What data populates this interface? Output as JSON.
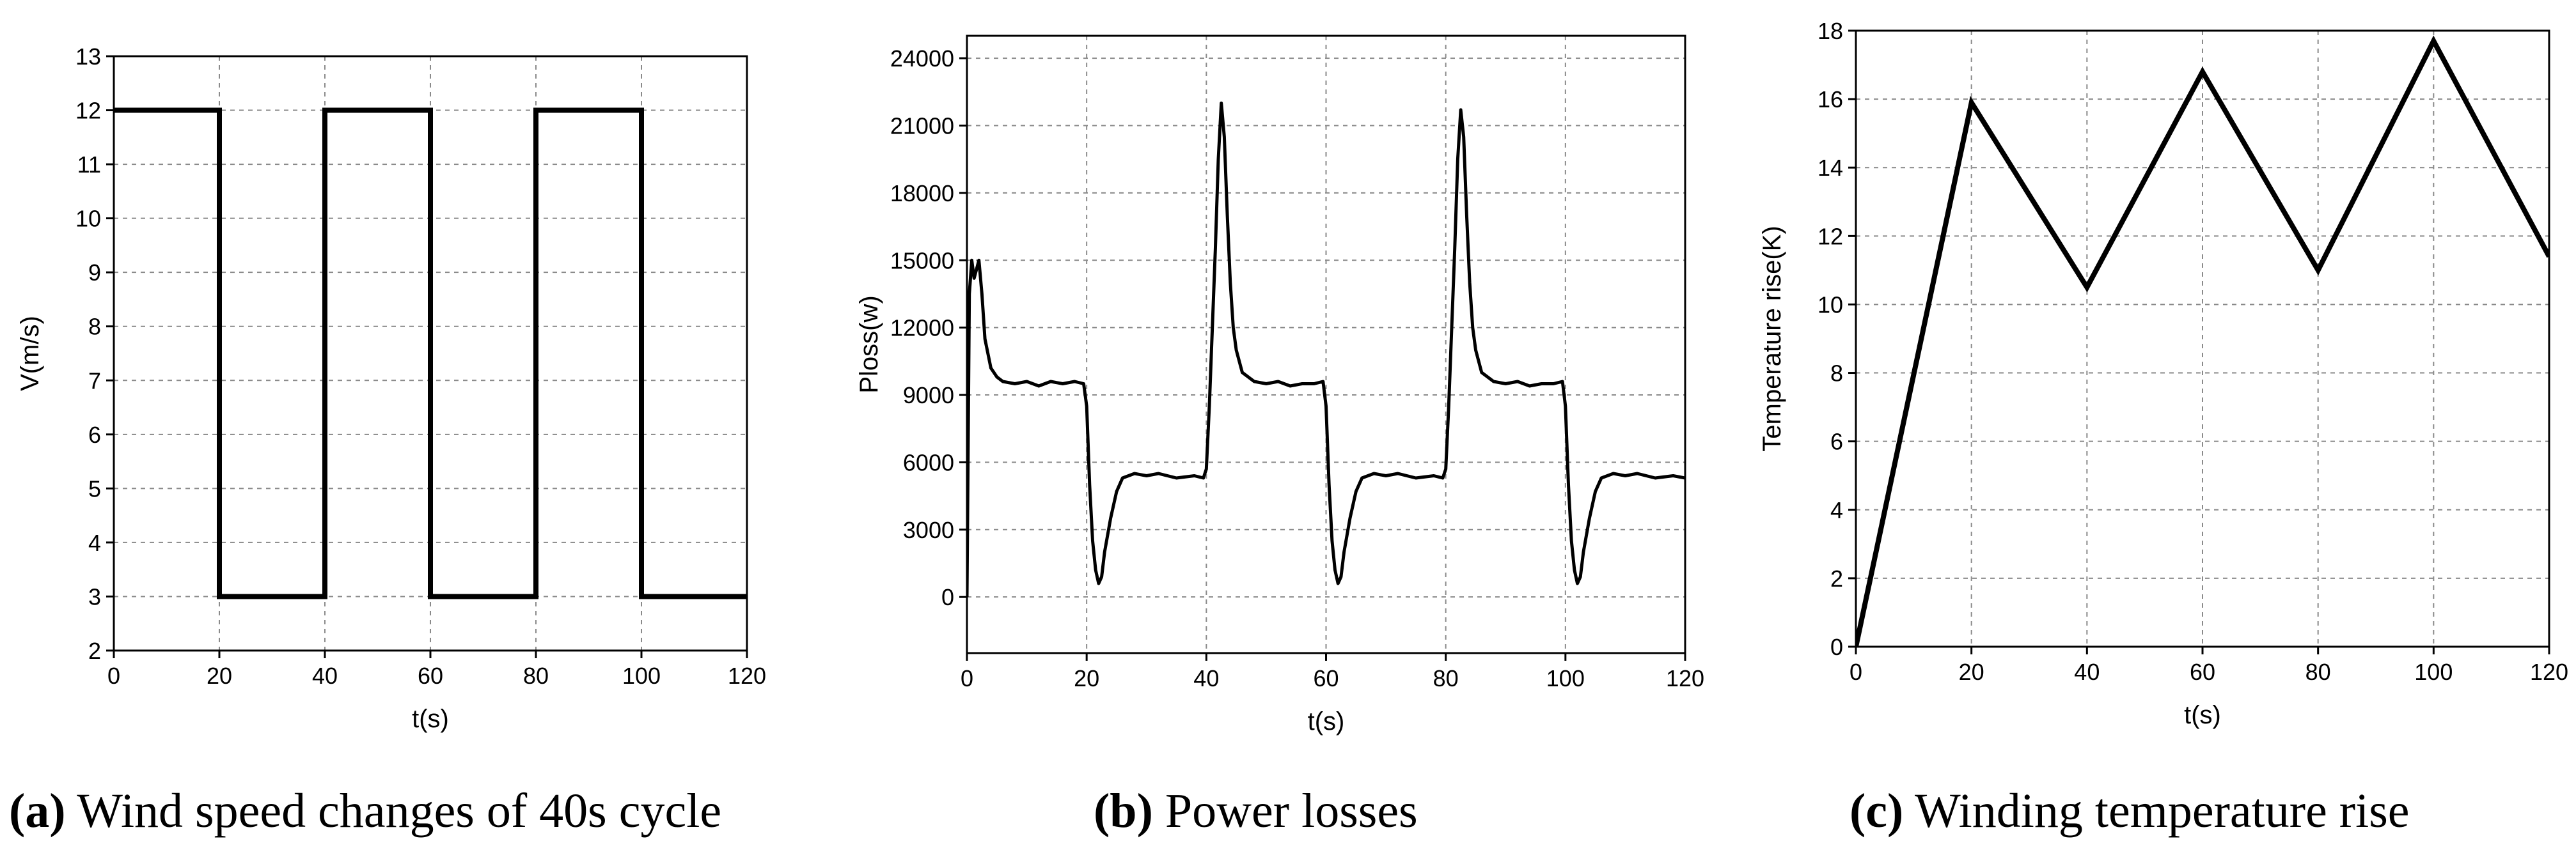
{
  "chart_data": [
    {
      "type": "line",
      "caption_label": "(a)",
      "caption_text": " Wind speed changes of 40s cycle",
      "xlabel": "t(s)",
      "ylabel": "V(m/s)",
      "xlim": [
        0,
        120
      ],
      "ylim": [
        2,
        13
      ],
      "xticks": [
        0,
        20,
        40,
        60,
        80,
        100,
        120
      ],
      "yticks": [
        2,
        3,
        4,
        5,
        6,
        7,
        8,
        9,
        10,
        11,
        12,
        13
      ],
      "grid": true,
      "series": [
        {
          "x": [
            0,
            20,
            20,
            40,
            40,
            60,
            60,
            80,
            80,
            100,
            100,
            120
          ],
          "y": [
            12,
            12,
            3,
            3,
            12,
            12,
            3,
            3,
            12,
            12,
            3,
            3
          ]
        }
      ]
    },
    {
      "type": "line",
      "caption_label": "(b)",
      "caption_text": " Power losses",
      "xlabel": "t(s)",
      "ylabel": "Ploss(w)",
      "xlim": [
        0,
        120
      ],
      "ylim": [
        -2500,
        25000
      ],
      "xticks": [
        0,
        20,
        40,
        60,
        80,
        100,
        120
      ],
      "yticks": [
        0,
        3000,
        6000,
        9000,
        12000,
        15000,
        18000,
        21000,
        24000
      ],
      "grid": true,
      "series": [
        {
          "x": [
            0,
            0.4,
            0.8,
            1.2,
            2,
            2.5,
            3,
            4,
            5,
            6,
            8,
            10,
            12,
            14,
            16,
            18,
            19.5,
            20,
            20.5,
            21,
            21.5,
            22,
            22.5,
            23,
            24,
            25,
            26,
            28,
            30,
            32,
            35,
            38,
            39.5,
            40,
            40.5,
            41,
            41.5,
            42,
            42.5,
            43,
            43.5,
            44,
            44.5,
            45,
            46,
            48,
            50,
            52,
            54,
            56,
            58,
            59.5,
            60,
            60.5,
            61,
            61.5,
            62,
            62.5,
            63,
            64,
            65,
            66,
            68,
            70,
            72,
            75,
            78,
            79.5,
            80,
            80.5,
            81,
            81.5,
            82,
            82.5,
            83,
            83.5,
            84,
            84.5,
            85,
            86,
            88,
            90,
            92,
            94,
            96,
            98,
            99.5,
            100,
            100.5,
            101,
            101.5,
            102,
            102.5,
            103,
            104,
            105,
            106,
            108,
            110,
            112,
            115,
            118,
            120
          ],
          "y": [
            0,
            13500,
            15000,
            14200,
            15000,
            13500,
            11500,
            10200,
            9800,
            9600,
            9500,
            9600,
            9400,
            9600,
            9500,
            9600,
            9500,
            8500,
            5000,
            2500,
            1200,
            600,
            900,
            2000,
            3500,
            4700,
            5300,
            5500,
            5400,
            5500,
            5300,
            5400,
            5300,
            5700,
            8500,
            12000,
            15500,
            19500,
            22000,
            20500,
            17000,
            14000,
            12000,
            11000,
            10000,
            9600,
            9500,
            9600,
            9400,
            9500,
            9500,
            9600,
            8500,
            5000,
            2500,
            1200,
            600,
            900,
            2000,
            3500,
            4700,
            5300,
            5500,
            5400,
            5500,
            5300,
            5400,
            5300,
            5700,
            8500,
            12000,
            15500,
            19500,
            21700,
            20500,
            17000,
            14000,
            12000,
            11000,
            10000,
            9600,
            9500,
            9600,
            9400,
            9500,
            9500,
            9600,
            8500,
            5000,
            2500,
            1200,
            600,
            900,
            2000,
            3500,
            4700,
            5300,
            5500,
            5400,
            5500,
            5300,
            5400,
            5300
          ]
        }
      ]
    },
    {
      "type": "line",
      "caption_label": "(c)",
      "caption_text": " Winding temperature rise",
      "xlabel": "t(s)",
      "ylabel": "Temperature rise(K)",
      "xlim": [
        0,
        120
      ],
      "ylim": [
        0,
        18
      ],
      "xticks": [
        0,
        20,
        40,
        60,
        80,
        100,
        120
      ],
      "yticks": [
        0,
        2,
        4,
        6,
        8,
        10,
        12,
        14,
        16,
        18
      ],
      "grid": true,
      "series": [
        {
          "x": [
            0,
            20,
            40,
            60,
            80,
            100,
            120
          ],
          "y": [
            0,
            15.9,
            10.5,
            16.8,
            11.0,
            17.7,
            11.4
          ]
        }
      ]
    }
  ]
}
